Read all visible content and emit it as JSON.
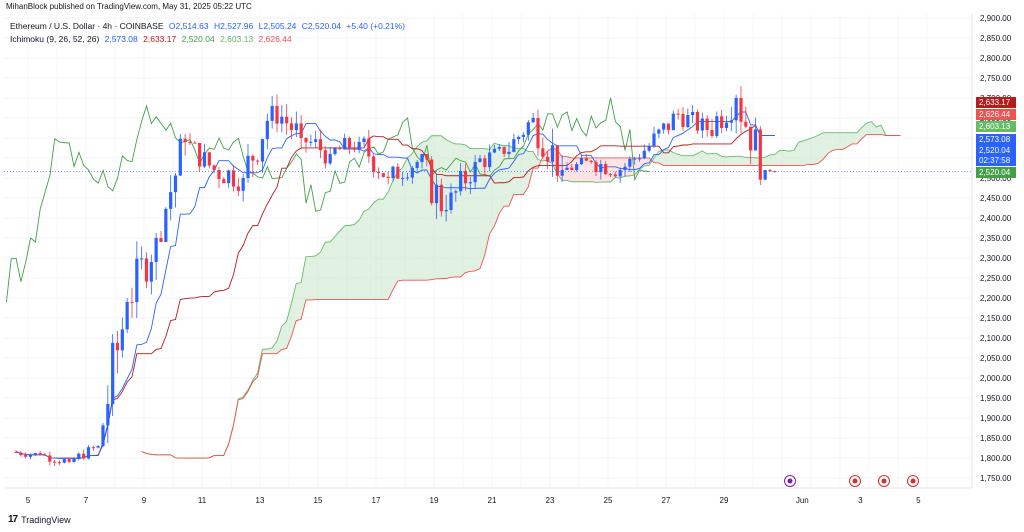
{
  "header": {
    "published": "MihanBlock published on TradingView.com, May 31, 2025 05:22 UTC"
  },
  "legend": {
    "symbol": "Ethereum / U.S. Dollar · 4h · COINBASE",
    "o": "O2,514.63",
    "h": "H2,527.96",
    "l": "L2,505.24",
    "c": "C2,520.04",
    "chg": "+5.40 (+0.21%)",
    "ichi_label": "Ichimoku (9, 26, 52, 26)",
    "ichi_v1": "2,573.08",
    "ichi_v2": "2,633.17",
    "ichi_v3": "2,520.04",
    "ichi_v4": "2,603.13",
    "ichi_v5": "2,626.44"
  },
  "colors": {
    "up": "#2962ff",
    "down": "#f23645",
    "tenkan": "#2962ff",
    "kijun": "#b71c1c",
    "chikou": "#43a047",
    "spanA": "#66bb6a",
    "spanB": "#ef5350",
    "cloud_bull": "#c8e6c9",
    "cloud_bear": "#ffcdd2"
  },
  "price_tags": [
    {
      "text": "2,633.17",
      "color": "#b71c1c",
      "price": 2690
    },
    {
      "text": "2,626.44",
      "color": "#ef5350",
      "price": 2660
    },
    {
      "text": "2,603.13",
      "color": "#66bb6a",
      "price": 2630
    },
    {
      "text": "2,573.08",
      "color": "#2962ff",
      "price": 2597
    },
    {
      "text": "2,520.04",
      "color": "#2962ff",
      "price": 2570
    },
    {
      "text": "02:37:58",
      "color": "#2962ff",
      "price": 2545
    },
    {
      "text": "2,520.04",
      "color": "#43a047",
      "price": 2515
    }
  ],
  "footer": {
    "brand": "TradingView"
  },
  "chart_data": {
    "type": "candlestick",
    "title": "Ethereum / U.S. Dollar · 4h · COINBASE",
    "ylim": [
      1725,
      2910
    ],
    "y_ticks": [
      1750,
      1800,
      1850,
      1900,
      1950,
      2000,
      2050,
      2100,
      2150,
      2200,
      2250,
      2300,
      2350,
      2400,
      2450,
      2500,
      2550,
      2600,
      2650,
      2700,
      2750,
      2800,
      2850,
      2900
    ],
    "x_ticks": [
      "5",
      "7",
      "9",
      "11",
      "13",
      "15",
      "17",
      "19",
      "21",
      "23",
      "25",
      "27",
      "29",
      "Jun",
      "3",
      "5"
    ],
    "daily_path": [
      {
        "day": "5",
        "o": 1815,
        "h": 1835,
        "l": 1790,
        "c": 1808
      },
      {
        "day": "6",
        "o": 1808,
        "h": 1820,
        "l": 1765,
        "c": 1790
      },
      {
        "day": "7",
        "o": 1790,
        "h": 1840,
        "l": 1780,
        "c": 1830
      },
      {
        "day": "8",
        "o": 1830,
        "h": 2200,
        "l": 1820,
        "c": 2190
      },
      {
        "day": "9",
        "o": 2190,
        "h": 2410,
        "l": 2150,
        "c": 2350
      },
      {
        "day": "10",
        "o": 2350,
        "h": 2610,
        "l": 2340,
        "c": 2590
      },
      {
        "day": "11",
        "o": 2590,
        "h": 2620,
        "l": 2480,
        "c": 2520
      },
      {
        "day": "12",
        "o": 2520,
        "h": 2600,
        "l": 2440,
        "c": 2500
      },
      {
        "day": "13",
        "o": 2500,
        "h": 2740,
        "l": 2480,
        "c": 2680
      },
      {
        "day": "14",
        "o": 2680,
        "h": 2720,
        "l": 2540,
        "c": 2600
      },
      {
        "day": "15",
        "o": 2600,
        "h": 2650,
        "l": 2500,
        "c": 2560
      },
      {
        "day": "16",
        "o": 2560,
        "h": 2640,
        "l": 2520,
        "c": 2590
      },
      {
        "day": "17",
        "o": 2590,
        "h": 2620,
        "l": 2460,
        "c": 2500
      },
      {
        "day": "18",
        "o": 2500,
        "h": 2580,
        "l": 2460,
        "c": 2540
      },
      {
        "day": "19",
        "o": 2540,
        "h": 2560,
        "l": 2330,
        "c": 2420
      },
      {
        "day": "20",
        "o": 2420,
        "h": 2580,
        "l": 2400,
        "c": 2540
      },
      {
        "day": "21",
        "o": 2540,
        "h": 2600,
        "l": 2480,
        "c": 2560
      },
      {
        "day": "22",
        "o": 2560,
        "h": 2690,
        "l": 2550,
        "c": 2650
      },
      {
        "day": "23",
        "o": 2650,
        "h": 2730,
        "l": 2490,
        "c": 2520
      },
      {
        "day": "24",
        "o": 2520,
        "h": 2580,
        "l": 2500,
        "c": 2540
      },
      {
        "day": "25",
        "o": 2540,
        "h": 2580,
        "l": 2470,
        "c": 2520
      },
      {
        "day": "26",
        "o": 2520,
        "h": 2600,
        "l": 2500,
        "c": 2580
      },
      {
        "day": "27",
        "o": 2580,
        "h": 2700,
        "l": 2560,
        "c": 2660
      },
      {
        "day": "28",
        "o": 2660,
        "h": 2700,
        "l": 2580,
        "c": 2620
      },
      {
        "day": "29",
        "o": 2620,
        "h": 2790,
        "l": 2600,
        "c": 2700
      },
      {
        "day": "30",
        "o": 2700,
        "h": 2730,
        "l": 2480,
        "c": 2520
      },
      {
        "day": "31",
        "o": 2520,
        "h": 2528,
        "l": 2505,
        "c": 2520
      }
    ]
  }
}
